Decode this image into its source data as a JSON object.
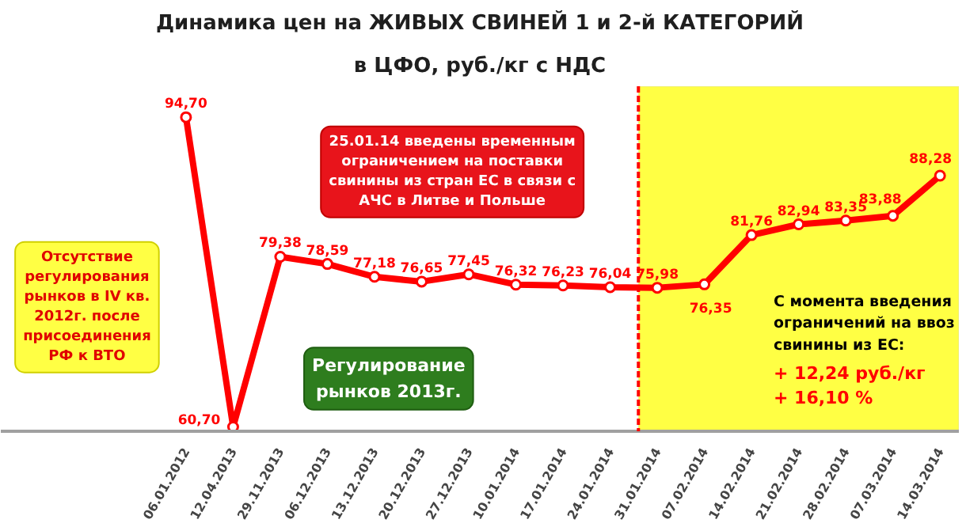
{
  "chart_data": {
    "type": "line",
    "title": "Динамика цен на ЖИВЫХ СВИНЕЙ 1 и 2-й КАТЕГОРИЙ",
    "subtitle": "в ЦФО, руб./кг с НДС",
    "categories": [
      "06.01.2012",
      "12.04.2013",
      "29.11.2013",
      "06.12.2013",
      "13.12.2013",
      "20.12.2013",
      "27.12.2013",
      "10.01.2014",
      "17.01.2014",
      "24.01.2014",
      "31.01.2014",
      "07.02.2014",
      "14.02.2014",
      "21.02.2014",
      "28.02.2014",
      "07.03.2014",
      "14.03.2014"
    ],
    "series": [
      {
        "color": "#ff0000",
        "values": [
          94.7,
          60.7,
          79.38,
          78.59,
          77.18,
          76.65,
          77.45,
          76.32,
          76.23,
          76.04,
          75.98,
          76.35,
          81.76,
          82.94,
          83.35,
          83.88,
          88.28
        ],
        "value_labels": [
          "94,70",
          "60,70",
          "79,38",
          "78,59",
          "77,18",
          "76,65",
          "77,45",
          "76,32",
          "76,23",
          "76,04",
          "75,98",
          "76,35",
          "81,76",
          "82,94",
          "83,35",
          "83,88",
          "88,28"
        ]
      }
    ],
    "marker": "circle",
    "tick_labels": "x",
    "bands": [
      {
        "axis": "x",
        "from": "31.01.2014",
        "to": "14.03.2014",
        "color": "#ffff44"
      }
    ],
    "ref_lines": [
      {
        "axis": "x",
        "value": "31.01.2014",
        "color": "#ff0000",
        "line_style": "dashed"
      }
    ],
    "annotations": [
      "25.01.14 введены временным\nограничением на поставки\nсвинины из стран ЕС в связи с\nАЧС в Литве и Польше",
      "Отсутствие\nрегулирования\nрынков в IV кв.\n2012г. после\nприсоединения\nРФ к ВТО",
      "Регулирование\nрынков 2013г.",
      "С момента введения\nограничений на ввоз\nсвинины из ЕС:",
      "+ 12,24 руб./кг",
      "+ 16,10 %"
    ]
  }
}
